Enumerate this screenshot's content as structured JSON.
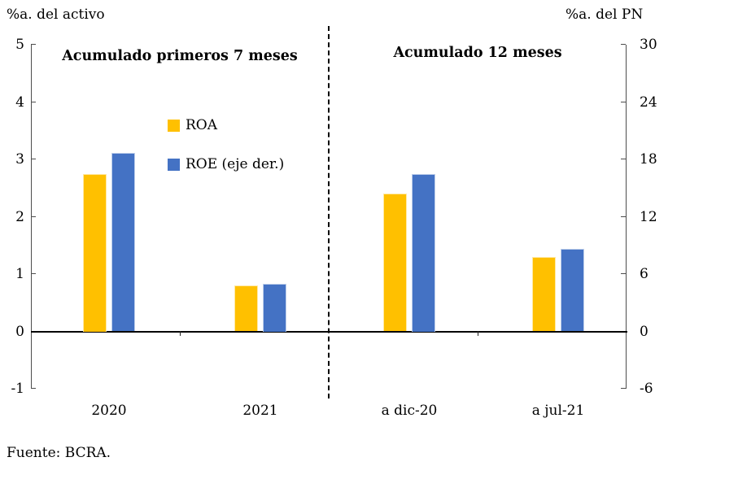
{
  "header": {
    "left_axis_title": "%a. del activo",
    "right_axis_title": "%a. del PN"
  },
  "panels": [
    {
      "title": "Acumulado primeros 7 meses"
    },
    {
      "title": "Acumulado 12 meses"
    }
  ],
  "legend": [
    {
      "label": "ROA",
      "color": "#FFC000"
    },
    {
      "label": "ROE (eje der.)",
      "color": "#4472C4"
    }
  ],
  "footer": {
    "source": "Fuente: BCRA."
  },
  "chart_data": {
    "type": "bar",
    "title": "",
    "panel_titles": [
      "Acumulado primeros 7 meses",
      "Acumulado 12 meses"
    ],
    "categories": [
      "2020",
      "2021",
      "a dic-20",
      "a jul-21"
    ],
    "series": [
      {
        "name": "ROA",
        "axis": "left",
        "color": "#FFC000",
        "values": [
          2.75,
          0.8,
          2.4,
          1.3
        ]
      },
      {
        "name": "ROE (eje der.)",
        "axis": "right",
        "color": "#4472C4",
        "values": [
          18.7,
          5.0,
          16.5,
          8.6
        ]
      }
    ],
    "left_axis": {
      "label": "%a. del activo",
      "ticks": [
        5,
        4,
        3,
        2,
        1,
        0,
        -1
      ],
      "range": [
        -1,
        5
      ]
    },
    "right_axis": {
      "label": "%a. del PN",
      "ticks": [
        30,
        24,
        18,
        12,
        6,
        0,
        -6
      ],
      "range": [
        -6,
        30
      ]
    },
    "grid": false,
    "legend_position": "upper-left-inside",
    "source": "Fuente: BCRA."
  }
}
